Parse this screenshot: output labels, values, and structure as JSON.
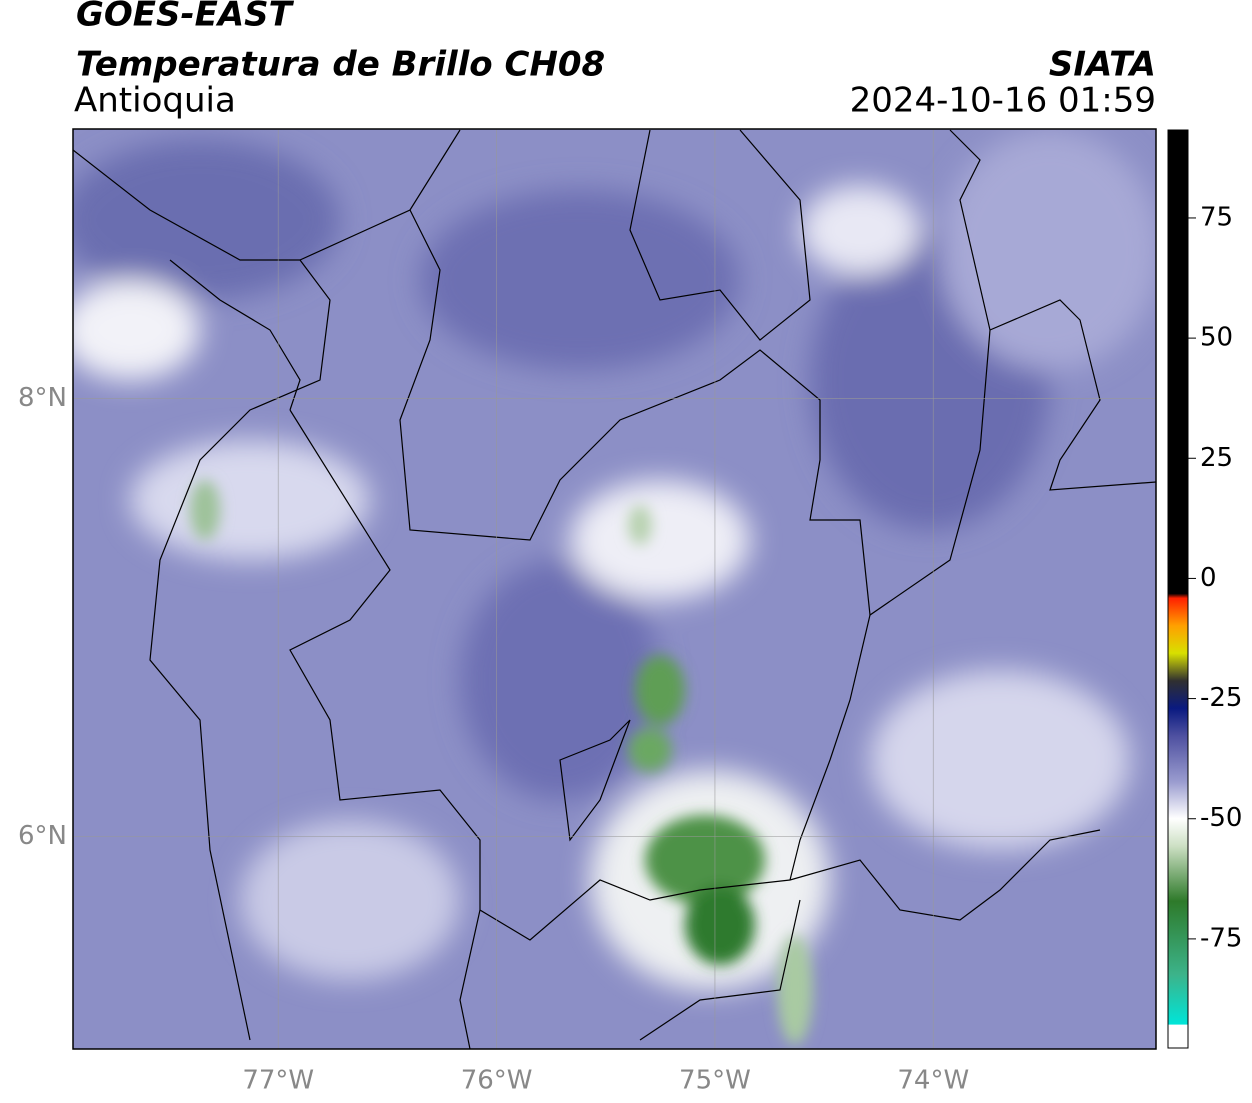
{
  "header": {
    "title": "GOES-EAST",
    "subtitle": "Temperatura de Brillo CH08",
    "region": "Antioquia",
    "source": "SIATA",
    "timestamp": "2024-10-16 01:59"
  },
  "map": {
    "xlim": [
      -77.94,
      -72.98
    ],
    "ylim": [
      5.03,
      9.23
    ],
    "xticks": [
      {
        "value": -77,
        "label": "77°W"
      },
      {
        "value": -76,
        "label": "76°W"
      },
      {
        "value": -75,
        "label": "75°W"
      },
      {
        "value": -74,
        "label": "74°W"
      }
    ],
    "yticks": [
      {
        "value": 8,
        "label": "8°N"
      },
      {
        "value": 6,
        "label": "6°N"
      }
    ]
  },
  "colorbar": {
    "lim": [
      -97.7,
      93.3
    ],
    "ticks": [
      75,
      50,
      25,
      0,
      -25,
      -50,
      -75
    ]
  }
}
